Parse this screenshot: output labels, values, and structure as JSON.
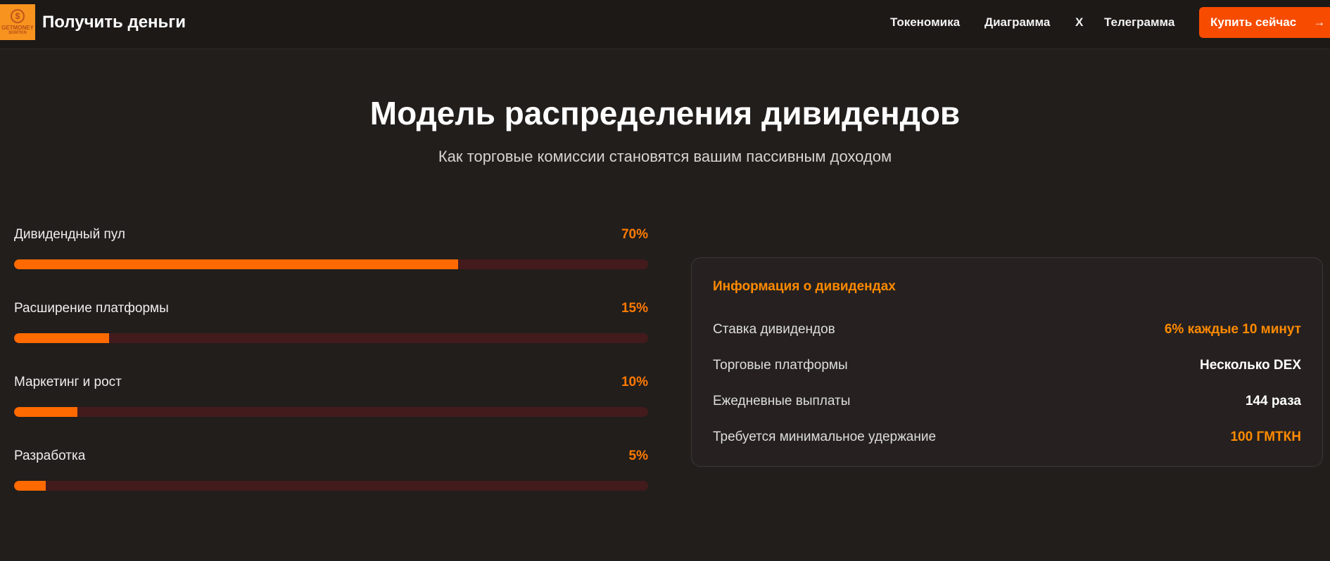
{
  "header": {
    "logo_text": [
      "GETMONEY",
      "$GMTKN"
    ],
    "brand": "Получить деньги",
    "nav": [
      "Токеномика",
      "Диаграмма",
      "X",
      "Телеграмма"
    ],
    "buy_label": "Купить сейчас",
    "buy_icon": "arrow-right-icon",
    "accent": "#f74b00"
  },
  "main": {
    "title": "Модель распределения дивидендов",
    "subtitle": "Как торговые комиссии становятся вашим пассивным доходом"
  },
  "allocation": [
    {
      "label": "Дивидендный пул",
      "pct_text": "70%",
      "value": 70
    },
    {
      "label": "Расширение платформы",
      "pct_text": "15%",
      "value": 15
    },
    {
      "label": "Маркетинг и рост",
      "pct_text": "10%",
      "value": 10
    },
    {
      "label": "Разработка",
      "pct_text": "5%",
      "value": 5
    }
  ],
  "info": {
    "title": "Информация о дивидендах",
    "rows": [
      {
        "key": "Ставка дивидендов",
        "value": "6% каждые 10 минут",
        "color": "#ff8a00"
      },
      {
        "key": "Торговые платформы",
        "value": "Несколько DEX",
        "color": "#ffffff"
      },
      {
        "key": "Ежедневные выплаты",
        "value": "144 раза",
        "color": "#ffffff"
      },
      {
        "key": "Требуется минимальное удержание",
        "value": "100 ГМТКН",
        "color": "#ff8a00"
      }
    ]
  }
}
